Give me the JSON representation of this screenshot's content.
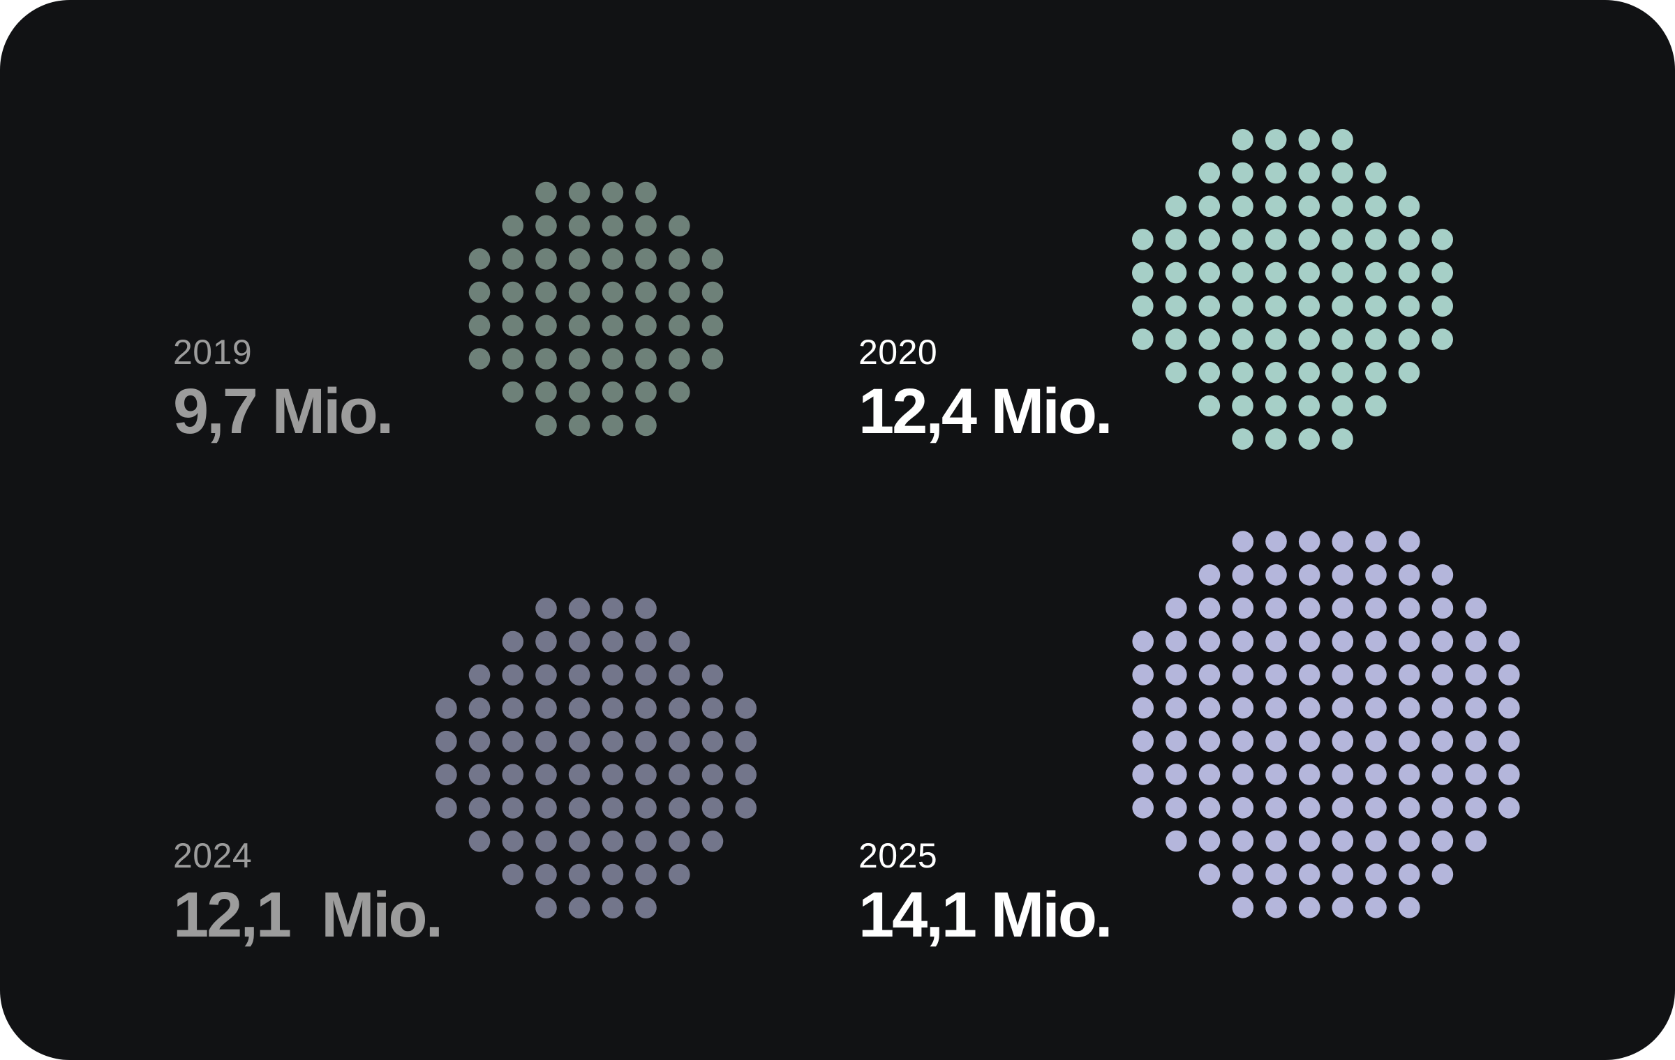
{
  "chart_data": [
    {
      "type": "dot-cluster",
      "year": "2019",
      "value_label": "9,7 Mio.",
      "value": 9.7,
      "unit": "Mio.",
      "color": "#6e8179",
      "text_color": "#9c9c9c"
    },
    {
      "type": "dot-cluster",
      "year": "2020",
      "value_label": "12,4 Mio.",
      "value": 12.4,
      "unit": "Mio.",
      "color": "#a6cfc7",
      "text_color": "#ffffff"
    },
    {
      "type": "dot-cluster",
      "year": "2024",
      "value_label": "12,1  Mio.",
      "value": 12.1,
      "unit": "Mio.",
      "color": "#73768b",
      "text_color": "#9c9c9c"
    },
    {
      "type": "dot-cluster",
      "year": "2025",
      "value_label": "14,1 Mio.",
      "value": 14.1,
      "unit": "Mio.",
      "color": "#b4b6db",
      "text_color": "#ffffff"
    }
  ]
}
